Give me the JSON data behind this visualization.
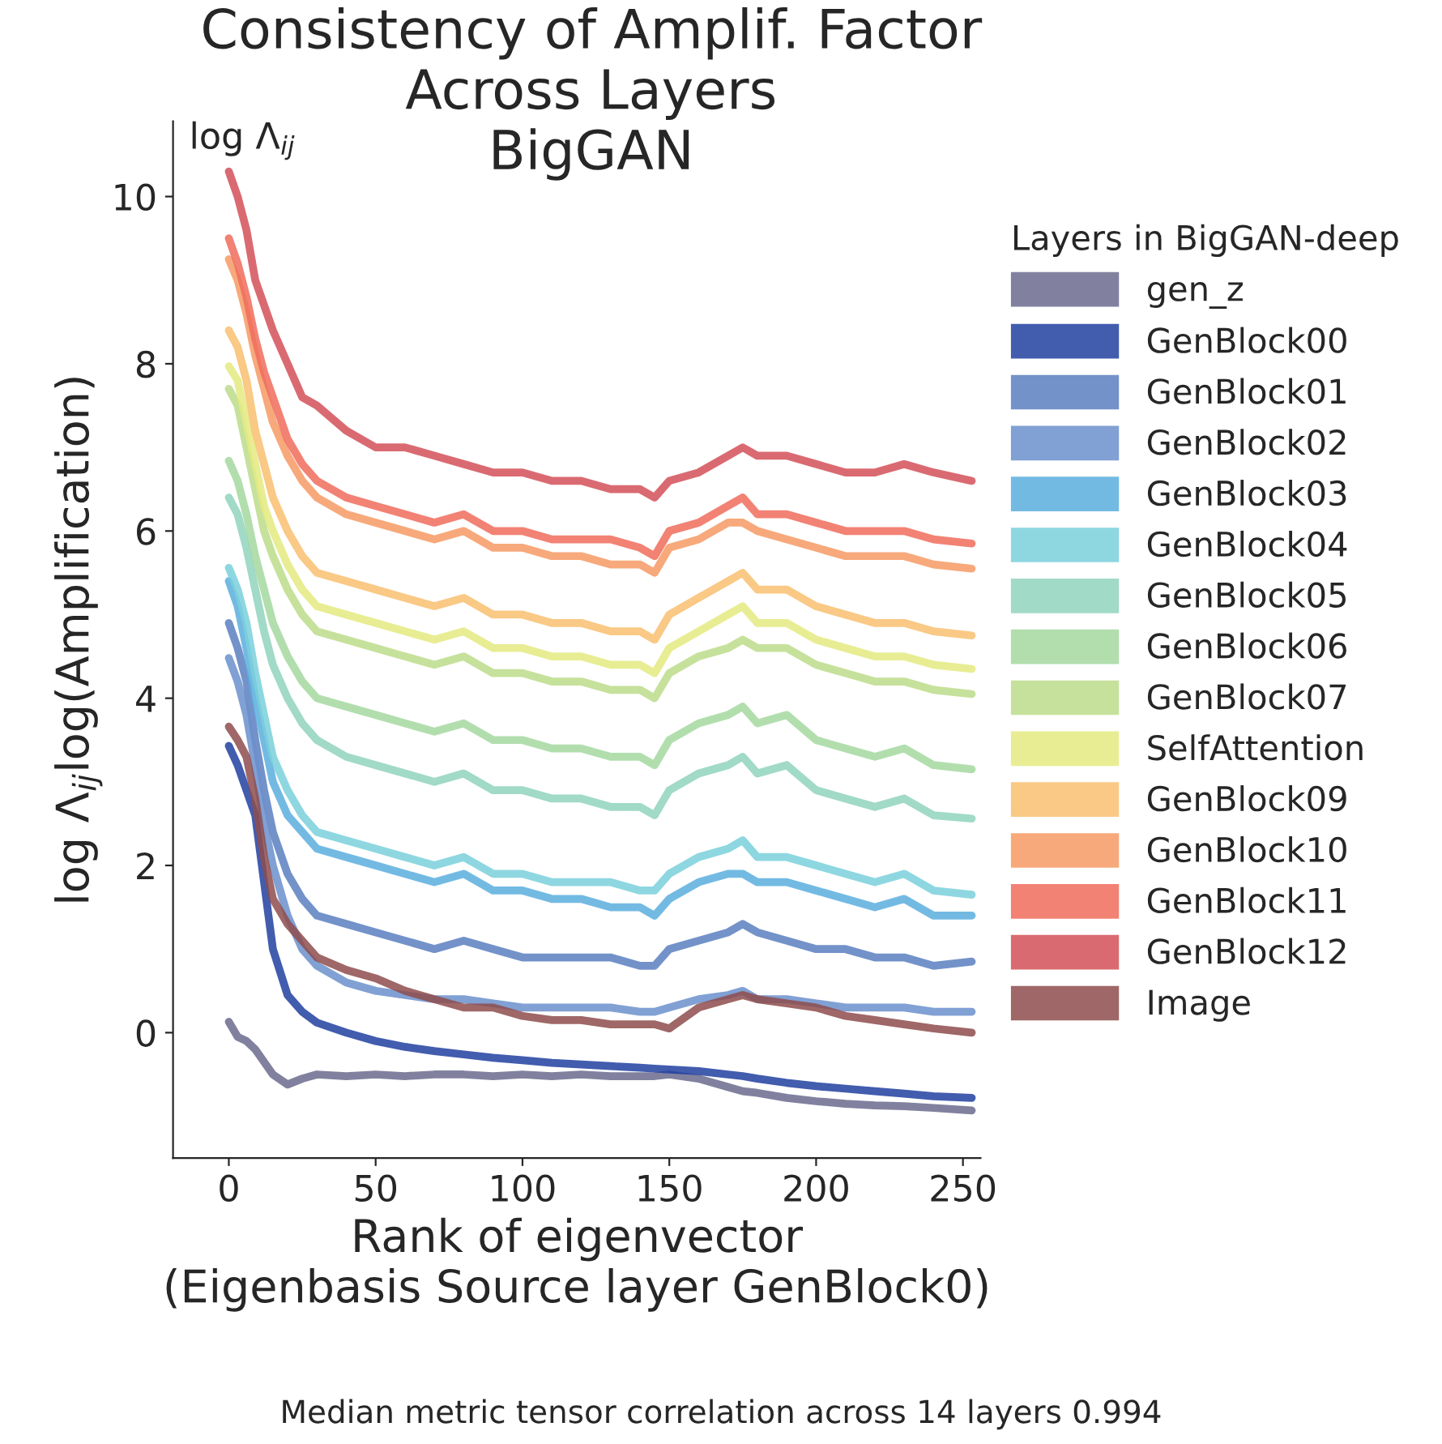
{
  "chart_data": {
    "type": "line",
    "title": "Consistency of Amplif. Factor\nAcross Layers\nBigGAN",
    "xlabel": "Rank of eigenvector\n(Eigenbasis Source layer GenBlock0)",
    "ylabel": "log Λ$_{ij}$log(Amplification)",
    "legend_title": "Layers in BigGAN-deep",
    "annotations": [
      "log Λ$_{ij}$",
      "Median metric tensor correlation across 14 layers 0.994"
    ],
    "x": [
      0,
      3,
      6,
      9,
      12,
      15,
      20,
      25,
      30,
      40,
      50,
      60,
      70,
      80,
      90,
      100,
      110,
      120,
      130,
      140,
      145,
      150,
      160,
      170,
      175,
      180,
      190,
      200,
      210,
      220,
      230,
      240,
      253
    ],
    "xlim": [
      -19,
      256
    ],
    "ylim": [
      -1.5,
      10.9
    ],
    "xticks": [
      0,
      50,
      100,
      150,
      200,
      250
    ],
    "yticks": [
      0,
      2,
      4,
      6,
      8,
      10
    ],
    "grid": false,
    "legend": "right",
    "marker": "none",
    "line_style": "solid",
    "series": [
      {
        "name": "gen_z",
        "color": "#6b6b8e",
        "values": [
          0.13,
          -0.05,
          -0.1,
          -0.2,
          -0.35,
          -0.5,
          -0.62,
          -0.55,
          -0.5,
          -0.52,
          -0.5,
          -0.52,
          -0.5,
          -0.5,
          -0.52,
          -0.5,
          -0.52,
          -0.5,
          -0.52,
          -0.52,
          -0.52,
          -0.5,
          -0.55,
          -0.65,
          -0.7,
          -0.72,
          -0.78,
          -0.82,
          -0.85,
          -0.87,
          -0.88,
          -0.9,
          -0.93
        ]
      },
      {
        "name": "GenBlock00",
        "color": "#2140a0",
        "values": [
          3.43,
          3.2,
          2.9,
          2.6,
          1.8,
          1.0,
          0.45,
          0.25,
          0.12,
          0.0,
          -0.1,
          -0.17,
          -0.22,
          -0.26,
          -0.3,
          -0.33,
          -0.36,
          -0.38,
          -0.4,
          -0.42,
          -0.43,
          -0.44,
          -0.46,
          -0.5,
          -0.52,
          -0.55,
          -0.6,
          -0.64,
          -0.67,
          -0.7,
          -0.73,
          -0.76,
          -0.78
        ]
      },
      {
        "name": "GenBlock01",
        "color": "#5a7fc0",
        "values": [
          4.9,
          4.6,
          4.2,
          3.5,
          2.9,
          2.4,
          1.9,
          1.6,
          1.4,
          1.3,
          1.2,
          1.1,
          1.0,
          1.1,
          1.0,
          0.9,
          0.9,
          0.9,
          0.9,
          0.8,
          0.8,
          1.0,
          1.1,
          1.2,
          1.3,
          1.2,
          1.1,
          1.0,
          1.0,
          0.9,
          0.9,
          0.8,
          0.85
        ]
      },
      {
        "name": "GenBlock02",
        "color": "#6b8fcc",
        "values": [
          4.48,
          4.2,
          3.8,
          3.2,
          2.5,
          2.0,
          1.4,
          1.0,
          0.8,
          0.6,
          0.5,
          0.45,
          0.4,
          0.4,
          0.35,
          0.3,
          0.3,
          0.3,
          0.3,
          0.25,
          0.25,
          0.3,
          0.4,
          0.45,
          0.5,
          0.4,
          0.4,
          0.35,
          0.3,
          0.3,
          0.3,
          0.25,
          0.25
        ]
      },
      {
        "name": "GenBlock03",
        "color": "#5aaede",
        "values": [
          5.4,
          5.1,
          4.6,
          4.0,
          3.5,
          3.0,
          2.6,
          2.4,
          2.2,
          2.1,
          2.0,
          1.9,
          1.8,
          1.9,
          1.7,
          1.7,
          1.6,
          1.6,
          1.5,
          1.5,
          1.4,
          1.6,
          1.8,
          1.9,
          1.9,
          1.8,
          1.8,
          1.7,
          1.6,
          1.5,
          1.6,
          1.4,
          1.4
        ]
      },
      {
        "name": "GenBlock04",
        "color": "#7ad0dc",
        "values": [
          5.56,
          5.3,
          4.9,
          4.3,
          3.8,
          3.3,
          2.9,
          2.6,
          2.4,
          2.3,
          2.2,
          2.1,
          2.0,
          2.1,
          1.9,
          1.9,
          1.8,
          1.8,
          1.8,
          1.7,
          1.7,
          1.9,
          2.1,
          2.2,
          2.3,
          2.1,
          2.1,
          2.0,
          1.9,
          1.8,
          1.9,
          1.7,
          1.65
        ]
      },
      {
        "name": "GenBlock05",
        "color": "#90d4bc",
        "values": [
          6.4,
          6.2,
          5.8,
          5.3,
          4.8,
          4.4,
          4.0,
          3.7,
          3.5,
          3.3,
          3.2,
          3.1,
          3.0,
          3.1,
          2.9,
          2.9,
          2.8,
          2.8,
          2.7,
          2.7,
          2.6,
          2.9,
          3.1,
          3.2,
          3.3,
          3.1,
          3.2,
          2.9,
          2.8,
          2.7,
          2.8,
          2.6,
          2.56
        ]
      },
      {
        "name": "GenBlock06",
        "color": "#a4d8a0",
        "values": [
          6.84,
          6.6,
          6.2,
          5.7,
          5.3,
          4.9,
          4.5,
          4.2,
          4.0,
          3.9,
          3.8,
          3.7,
          3.6,
          3.7,
          3.5,
          3.5,
          3.4,
          3.4,
          3.3,
          3.3,
          3.2,
          3.5,
          3.7,
          3.8,
          3.9,
          3.7,
          3.8,
          3.5,
          3.4,
          3.3,
          3.4,
          3.2,
          3.15
        ]
      },
      {
        "name": "GenBlock07",
        "color": "#bcdc8a",
        "values": [
          7.7,
          7.5,
          7.0,
          6.5,
          6.0,
          5.7,
          5.3,
          5.0,
          4.8,
          4.7,
          4.6,
          4.5,
          4.4,
          4.5,
          4.3,
          4.3,
          4.2,
          4.2,
          4.1,
          4.1,
          4.0,
          4.3,
          4.5,
          4.6,
          4.7,
          4.6,
          4.6,
          4.4,
          4.3,
          4.2,
          4.2,
          4.1,
          4.05
        ]
      },
      {
        "name": "SelfAttention",
        "color": "#e4ea80",
        "values": [
          7.97,
          7.8,
          7.3,
          6.8,
          6.3,
          6.0,
          5.6,
          5.3,
          5.1,
          5.0,
          4.9,
          4.8,
          4.7,
          4.8,
          4.6,
          4.6,
          4.5,
          4.5,
          4.4,
          4.4,
          4.3,
          4.6,
          4.8,
          5.0,
          5.1,
          4.9,
          4.9,
          4.7,
          4.6,
          4.5,
          4.5,
          4.4,
          4.35
        ]
      },
      {
        "name": "GenBlock09",
        "color": "#f8c070",
        "values": [
          8.4,
          8.2,
          7.8,
          7.2,
          6.8,
          6.4,
          6.0,
          5.7,
          5.5,
          5.4,
          5.3,
          5.2,
          5.1,
          5.2,
          5.0,
          5.0,
          4.9,
          4.9,
          4.8,
          4.8,
          4.7,
          5.0,
          5.2,
          5.4,
          5.5,
          5.3,
          5.3,
          5.1,
          5.0,
          4.9,
          4.9,
          4.8,
          4.75
        ]
      },
      {
        "name": "GenBlock10",
        "color": "#f69a64",
        "values": [
          9.25,
          9.0,
          8.6,
          8.1,
          7.7,
          7.3,
          6.9,
          6.6,
          6.4,
          6.2,
          6.1,
          6.0,
          5.9,
          6.0,
          5.8,
          5.8,
          5.7,
          5.7,
          5.6,
          5.6,
          5.5,
          5.8,
          5.9,
          6.1,
          6.1,
          6.0,
          5.9,
          5.8,
          5.7,
          5.7,
          5.7,
          5.6,
          5.55
        ]
      },
      {
        "name": "GenBlock11",
        "color": "#f06c5c",
        "values": [
          9.5,
          9.2,
          8.8,
          8.3,
          7.9,
          7.6,
          7.1,
          6.8,
          6.6,
          6.4,
          6.3,
          6.2,
          6.1,
          6.2,
          6.0,
          6.0,
          5.9,
          5.9,
          5.9,
          5.8,
          5.7,
          6.0,
          6.1,
          6.3,
          6.4,
          6.2,
          6.2,
          6.1,
          6.0,
          6.0,
          6.0,
          5.9,
          5.85
        ]
      },
      {
        "name": "GenBlock12",
        "color": "#d45058",
        "values": [
          10.3,
          10.0,
          9.6,
          9.0,
          8.7,
          8.4,
          8.0,
          7.6,
          7.5,
          7.2,
          7.0,
          7.0,
          6.9,
          6.8,
          6.7,
          6.7,
          6.6,
          6.6,
          6.5,
          6.5,
          6.4,
          6.6,
          6.7,
          6.9,
          7.0,
          6.9,
          6.9,
          6.8,
          6.7,
          6.7,
          6.8,
          6.7,
          6.6
        ]
      },
      {
        "name": "Image",
        "color": "#8e4c4c",
        "values": [
          3.66,
          3.5,
          3.3,
          2.8,
          2.1,
          1.6,
          1.3,
          1.1,
          0.9,
          0.75,
          0.65,
          0.5,
          0.4,
          0.3,
          0.3,
          0.2,
          0.15,
          0.15,
          0.1,
          0.1,
          0.1,
          0.05,
          0.3,
          0.4,
          0.45,
          0.4,
          0.35,
          0.3,
          0.2,
          0.15,
          0.1,
          0.05,
          0.0
        ]
      }
    ]
  }
}
